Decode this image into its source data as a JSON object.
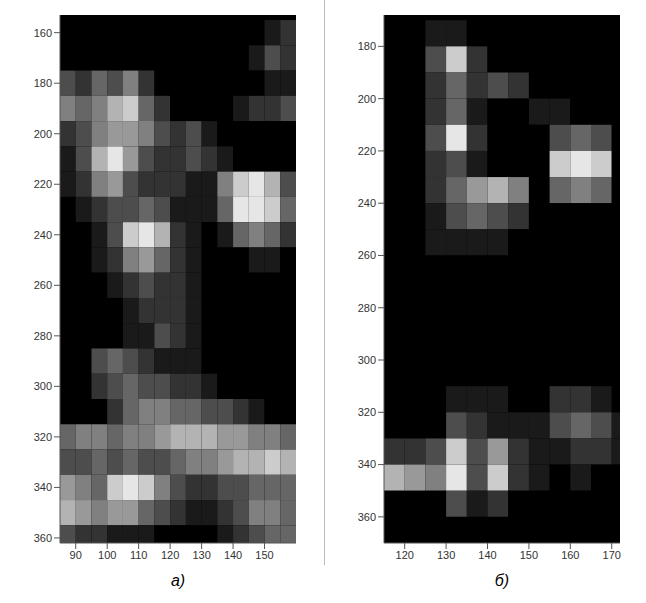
{
  "chart_data": [
    {
      "type": "heatmap",
      "title": "а)",
      "color": "#ffffff",
      "xlim": [
        85,
        160
      ],
      "ylim": [
        153,
        362
      ],
      "xticks": [
        90,
        100,
        110,
        120,
        130,
        140,
        150
      ],
      "yticks": [
        160,
        180,
        200,
        220,
        240,
        260,
        280,
        300,
        320,
        340,
        360
      ],
      "x_edges": [
        85,
        90,
        95,
        100,
        105,
        110,
        115,
        120,
        125,
        130,
        135,
        140,
        145,
        150,
        155,
        160
      ],
      "y_edges": [
        155,
        165,
        175,
        185,
        195,
        205,
        215,
        225,
        235,
        245,
        255,
        265,
        275,
        285,
        295,
        305,
        315,
        325,
        335,
        345,
        355,
        365
      ],
      "cells": [
        [
          0,
          0,
          0,
          0,
          0,
          0,
          0,
          0,
          0,
          0,
          0,
          0,
          0,
          0.1,
          0.2
        ],
        [
          0,
          0,
          0,
          0,
          0,
          0,
          0,
          0,
          0,
          0,
          0,
          0,
          0.1,
          0.3,
          0.2
        ],
        [
          0.3,
          0.2,
          0.4,
          0.3,
          0.5,
          0.2,
          0,
          0,
          0,
          0,
          0,
          0,
          0,
          0.1,
          0.1
        ],
        [
          0.5,
          0.4,
          0.5,
          0.7,
          0.8,
          0.4,
          0.2,
          0,
          0,
          0,
          0,
          0.1,
          0.2,
          0.2,
          0.3
        ],
        [
          0.2,
          0.3,
          0.5,
          0.6,
          0.6,
          0.5,
          0.3,
          0.2,
          0.3,
          0.1,
          0,
          0,
          0,
          0,
          0
        ],
        [
          0.1,
          0.3,
          0.7,
          0.9,
          0.6,
          0.3,
          0.2,
          0.2,
          0.3,
          0.2,
          0.1,
          0,
          0,
          0,
          0
        ],
        [
          0.1,
          0.2,
          0.5,
          0.6,
          0.3,
          0.2,
          0.2,
          0.2,
          0.1,
          0.1,
          0.5,
          0.8,
          0.9,
          0.7,
          0.3
        ],
        [
          0,
          0.1,
          0.2,
          0.3,
          0.3,
          0.4,
          0.3,
          0.1,
          0.1,
          0.1,
          0.4,
          0.9,
          0.9,
          0.8,
          0.4
        ],
        [
          0,
          0,
          0.1,
          0.3,
          0.8,
          0.9,
          0.7,
          0.2,
          0.1,
          0,
          0.1,
          0.4,
          0.5,
          0.4,
          0.2
        ],
        [
          0,
          0,
          0.1,
          0.2,
          0.5,
          0.6,
          0.4,
          0.2,
          0.1,
          0,
          0,
          0,
          0.1,
          0.1,
          0
        ],
        [
          0,
          0,
          0,
          0.1,
          0.2,
          0.3,
          0.2,
          0.2,
          0.1,
          0,
          0,
          0,
          0,
          0,
          0
        ],
        [
          0,
          0,
          0,
          0,
          0.1,
          0.2,
          0.2,
          0.2,
          0.1,
          0,
          0,
          0,
          0,
          0,
          0
        ],
        [
          0,
          0,
          0,
          0,
          0.1,
          0.1,
          0.3,
          0.2,
          0.1,
          0,
          0,
          0,
          0,
          0,
          0
        ],
        [
          0,
          0,
          0.3,
          0.4,
          0.3,
          0.2,
          0.1,
          0.1,
          0.1,
          0,
          0,
          0,
          0,
          0,
          0
        ],
        [
          0,
          0,
          0.2,
          0.3,
          0.4,
          0.3,
          0.3,
          0.2,
          0.2,
          0.1,
          0,
          0,
          0,
          0,
          0
        ],
        [
          0,
          0,
          0,
          0.2,
          0.4,
          0.5,
          0.5,
          0.4,
          0.4,
          0.3,
          0.3,
          0.2,
          0.1,
          0,
          0
        ],
        [
          0.4,
          0.5,
          0.5,
          0.4,
          0.5,
          0.5,
          0.6,
          0.7,
          0.7,
          0.7,
          0.6,
          0.6,
          0.5,
          0.5,
          0.4
        ],
        [
          0.3,
          0.3,
          0.4,
          0.3,
          0.4,
          0.3,
          0.3,
          0.4,
          0.5,
          0.5,
          0.6,
          0.7,
          0.7,
          0.8,
          0.7
        ],
        [
          0.6,
          0.5,
          0.4,
          0.8,
          0.9,
          0.8,
          0.5,
          0.3,
          0.2,
          0.2,
          0.3,
          0.3,
          0.4,
          0.4,
          0.4
        ],
        [
          0.7,
          0.6,
          0.5,
          0.6,
          0.6,
          0.4,
          0.3,
          0.2,
          0.1,
          0.1,
          0.2,
          0.3,
          0.5,
          0.5,
          0.4
        ],
        [
          0.3,
          0.2,
          0.2,
          0.1,
          0.1,
          0.1,
          0,
          0,
          0,
          0,
          0.1,
          0.2,
          0.3,
          0.4,
          0.4
        ]
      ]
    },
    {
      "type": "heatmap",
      "title": "б)",
      "color": "#ffffff",
      "xlim": [
        115,
        172
      ],
      "ylim": [
        168,
        370
      ],
      "xticks": [
        120,
        130,
        140,
        150,
        160,
        170
      ],
      "yticks": [
        180,
        200,
        220,
        240,
        260,
        280,
        300,
        320,
        340,
        360
      ],
      "x_edges": [
        115,
        120,
        125,
        130,
        135,
        140,
        145,
        150,
        155,
        160,
        165,
        170,
        175
      ],
      "y_edges": [
        170,
        180,
        190,
        200,
        210,
        220,
        230,
        240,
        250,
        260,
        270,
        280,
        290,
        300,
        310,
        320,
        330,
        340,
        350,
        360,
        370
      ],
      "cells": [
        [
          0,
          0,
          0.1,
          0.1,
          0,
          0,
          0,
          0,
          0,
          0,
          0,
          0
        ],
        [
          0,
          0,
          0.3,
          0.8,
          0.2,
          0,
          0,
          0,
          0,
          0,
          0,
          0
        ],
        [
          0,
          0,
          0.2,
          0.4,
          0.2,
          0.3,
          0.2,
          0,
          0,
          0,
          0,
          0
        ],
        [
          0,
          0,
          0.2,
          0.4,
          0.1,
          0,
          0,
          0.1,
          0.1,
          0,
          0,
          0
        ],
        [
          0,
          0,
          0.3,
          0.9,
          0.2,
          0,
          0,
          0,
          0.3,
          0.4,
          0.3,
          0
        ],
        [
          0,
          0,
          0.2,
          0.3,
          0.1,
          0,
          0,
          0,
          0.8,
          0.9,
          0.8,
          0
        ],
        [
          0,
          0,
          0.2,
          0.4,
          0.6,
          0.7,
          0.5,
          0,
          0.4,
          0.5,
          0.4,
          0
        ],
        [
          0,
          0,
          0.1,
          0.3,
          0.4,
          0.3,
          0.2,
          0,
          0,
          0,
          0,
          0
        ],
        [
          0,
          0,
          0.1,
          0.1,
          0.1,
          0.1,
          0,
          0,
          0,
          0,
          0,
          0
        ],
        [
          0,
          0,
          0,
          0,
          0,
          0,
          0,
          0,
          0,
          0,
          0,
          0
        ],
        [
          0,
          0,
          0,
          0,
          0,
          0,
          0,
          0,
          0,
          0,
          0,
          0
        ],
        [
          0,
          0,
          0,
          0,
          0,
          0,
          0,
          0,
          0,
          0,
          0,
          0
        ],
        [
          0,
          0,
          0,
          0,
          0,
          0,
          0,
          0,
          0,
          0,
          0,
          0
        ],
        [
          0,
          0,
          0,
          0,
          0,
          0,
          0,
          0,
          0,
          0,
          0,
          0
        ],
        [
          0,
          0,
          0,
          0.1,
          0.1,
          0.1,
          0,
          0,
          0.2,
          0.2,
          0.1,
          0
        ],
        [
          0,
          0,
          0,
          0.3,
          0.2,
          0.1,
          0.1,
          0.1,
          0.3,
          0.4,
          0.3,
          0.1
        ],
        [
          0.2,
          0.2,
          0.3,
          0.8,
          0.3,
          0.6,
          0.2,
          0.1,
          0.1,
          0.2,
          0.2,
          0.1
        ],
        [
          0.7,
          0.6,
          0.5,
          0.9,
          0.3,
          0.8,
          0.2,
          0.1,
          0,
          0.1,
          0,
          0
        ],
        [
          0,
          0,
          0,
          0.3,
          0.1,
          0.2,
          0,
          0,
          0,
          0,
          0,
          0
        ],
        [
          0,
          0,
          0,
          0,
          0,
          0,
          0,
          0,
          0,
          0,
          0,
          0
        ]
      ]
    }
  ]
}
